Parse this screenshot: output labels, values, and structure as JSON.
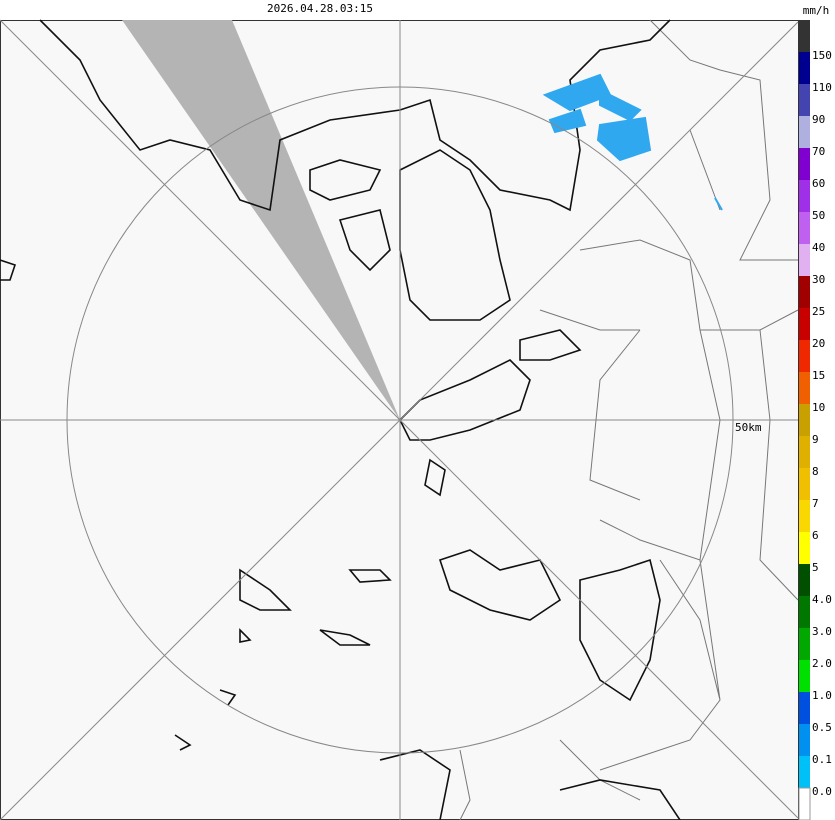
{
  "header": {
    "timestamp": "2026.04.28.03:15",
    "unit": "mm/h"
  },
  "map": {
    "range_label": "50km"
  },
  "legend": {
    "items": [
      {
        "label": "150",
        "color": "#333333"
      },
      {
        "label": "110",
        "color": "#000090"
      },
      {
        "label": "90",
        "color": "#4444b0"
      },
      {
        "label": "70",
        "color": "#b0b0e0"
      },
      {
        "label": "60",
        "color": "#8000d0"
      },
      {
        "label": "50",
        "color": "#a030e8"
      },
      {
        "label": "40",
        "color": "#c060f0"
      },
      {
        "label": "30",
        "color": "#e0b0f0"
      },
      {
        "label": "25",
        "color": "#a00000"
      },
      {
        "label": "20",
        "color": "#c80000"
      },
      {
        "label": "15",
        "color": "#f02800"
      },
      {
        "label": "10",
        "color": "#f06000"
      },
      {
        "label": "9",
        "color": "#c8a000"
      },
      {
        "label": "8",
        "color": "#e0b000"
      },
      {
        "label": "7",
        "color": "#f0c000"
      },
      {
        "label": "6",
        "color": "#f8d800"
      },
      {
        "label": "5",
        "color": "#ffff00"
      },
      {
        "label": "4.0",
        "color": "#005000"
      },
      {
        "label": "3.0",
        "color": "#007800"
      },
      {
        "label": "2.0",
        "color": "#00a800"
      },
      {
        "label": "1.0",
        "color": "#00e000"
      },
      {
        "label": "0.5",
        "color": "#0050e0"
      },
      {
        "label": "0.1",
        "color": "#0090f0"
      },
      {
        "label": "0.0",
        "color": "#00c0f8"
      }
    ],
    "bottom_color": "#ffffff"
  }
}
